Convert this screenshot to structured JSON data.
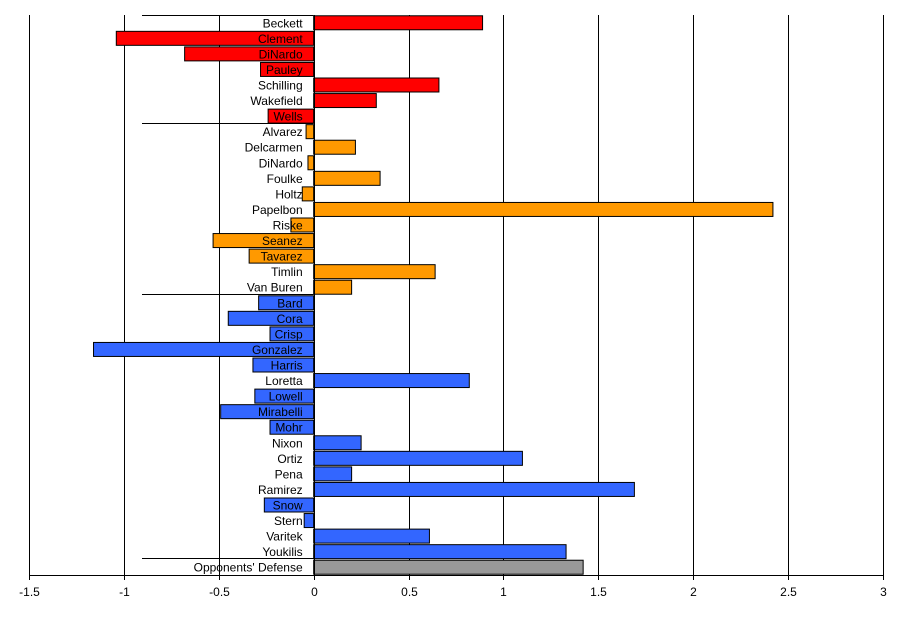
{
  "chart_data": {
    "type": "bar",
    "orientation": "horizontal",
    "xlim": [
      -1.5,
      3
    ],
    "xticks": [
      "-1.5",
      "-1",
      "-0.5",
      "0",
      "0.5",
      "1",
      "1.5",
      "2",
      "2.5",
      "3"
    ],
    "grid": "vertical",
    "legend": "none",
    "group_colors": {
      "red": "#ff0000",
      "orange": "#ff9900",
      "blue": "#3366ff",
      "gray": "#999999"
    },
    "bars": [
      {
        "label": "Beckett",
        "value": 0.89,
        "group": "red"
      },
      {
        "label": "Clement",
        "value": -1.04,
        "group": "red"
      },
      {
        "label": "DiNardo",
        "value": -0.68,
        "group": "red"
      },
      {
        "label": "Pauley",
        "value": -0.28,
        "group": "red"
      },
      {
        "label": "Schilling",
        "value": 0.66,
        "group": "red"
      },
      {
        "label": "Wakefield",
        "value": 0.33,
        "group": "red"
      },
      {
        "label": "Wells",
        "value": -0.24,
        "group": "red"
      },
      {
        "label": "Alvarez",
        "value": -0.04,
        "group": "orange"
      },
      {
        "label": "Delcarmen",
        "value": 0.22,
        "group": "orange"
      },
      {
        "label": "DiNardo",
        "value": -0.03,
        "group": "orange"
      },
      {
        "label": "Foulke",
        "value": 0.35,
        "group": "orange"
      },
      {
        "label": "Holtz",
        "value": -0.06,
        "group": "orange"
      },
      {
        "label": "Papelbon",
        "value": 2.42,
        "group": "orange"
      },
      {
        "label": "Riske",
        "value": -0.12,
        "group": "orange"
      },
      {
        "label": "Seanez",
        "value": -0.53,
        "group": "orange"
      },
      {
        "label": "Tavarez",
        "value": -0.34,
        "group": "orange"
      },
      {
        "label": "Timlin",
        "value": 0.64,
        "group": "orange"
      },
      {
        "label": "Van Buren",
        "value": 0.2,
        "group": "orange"
      },
      {
        "label": "Bard",
        "value": -0.29,
        "group": "blue"
      },
      {
        "label": "Cora",
        "value": -0.45,
        "group": "blue"
      },
      {
        "label": "Crisp",
        "value": -0.23,
        "group": "blue"
      },
      {
        "label": "Gonzalez",
        "value": -1.16,
        "group": "blue"
      },
      {
        "label": "Harris",
        "value": -0.32,
        "group": "blue"
      },
      {
        "label": "Loretta",
        "value": 0.82,
        "group": "blue"
      },
      {
        "label": "Lowell",
        "value": -0.31,
        "group": "blue"
      },
      {
        "label": "Mirabelli",
        "value": -0.49,
        "group": "blue"
      },
      {
        "label": "Mohr",
        "value": -0.23,
        "group": "blue"
      },
      {
        "label": "Nixon",
        "value": 0.25,
        "group": "blue"
      },
      {
        "label": "Ortiz",
        "value": 1.1,
        "group": "blue"
      },
      {
        "label": "Pena",
        "value": 0.2,
        "group": "blue"
      },
      {
        "label": "Ramirez",
        "value": 1.69,
        "group": "blue"
      },
      {
        "label": "Snow",
        "value": -0.26,
        "group": "blue"
      },
      {
        "label": "Stern",
        "value": -0.05,
        "group": "blue"
      },
      {
        "label": "Varitek",
        "value": 0.61,
        "group": "blue"
      },
      {
        "label": "Youkilis",
        "value": 1.33,
        "group": "blue"
      },
      {
        "label": "Opponents' Defense",
        "value": 1.42,
        "group": "gray"
      }
    ]
  }
}
